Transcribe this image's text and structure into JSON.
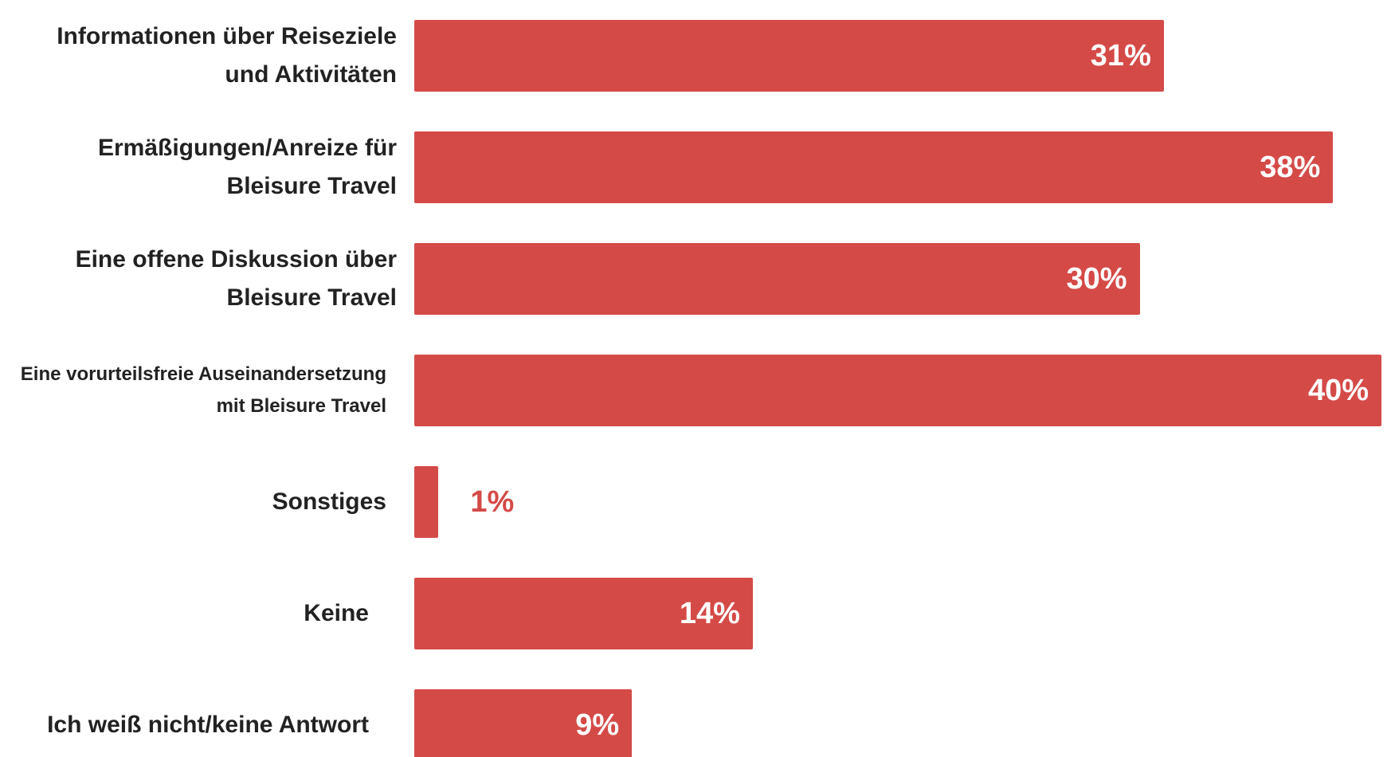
{
  "chart_data": {
    "type": "bar",
    "orientation": "horizontal",
    "categories": [
      "Informationen über Reiseziele und Aktivitäten",
      "Ermäßigungen/Anreize für Bleisure Travel",
      "Eine offene Diskussion über Bleisure Travel",
      "Eine vorurteilsfreie Auseinandersetzung mit Bleisure Travel",
      "Sonstiges",
      "Keine",
      "Ich weiß nicht/keine Antwort"
    ],
    "values": [
      31,
      38,
      30,
      40,
      1,
      14,
      9
    ],
    "value_labels": [
      "31%",
      "38%",
      "30%",
      "40%",
      "1%",
      "14%",
      "9%"
    ],
    "color": "#d44a47"
  }
}
